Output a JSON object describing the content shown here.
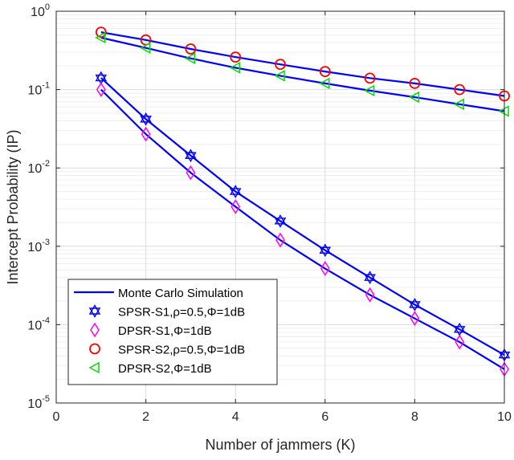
{
  "chart_data": {
    "type": "line",
    "xlabel": "Number of jammers (K)",
    "ylabel": "Intercept Probability (IP)",
    "xlim": [
      0,
      10
    ],
    "ylim": [
      1e-05,
      1
    ],
    "yscale": "log",
    "grid": true,
    "legend_position": "bottom-left",
    "xticks": [
      "0",
      "2",
      "4",
      "6",
      "8",
      "10"
    ],
    "yticks": [
      {
        "base": "10",
        "exp": "0"
      },
      {
        "base": "10",
        "exp": "-1"
      },
      {
        "base": "10",
        "exp": "-2"
      },
      {
        "base": "10",
        "exp": "-3"
      },
      {
        "base": "10",
        "exp": "-4"
      },
      {
        "base": "10",
        "exp": "-5"
      }
    ],
    "x": [
      1,
      2,
      3,
      4,
      5,
      6,
      7,
      8,
      9,
      10
    ],
    "line_legend": "Monte Carlo Simulation",
    "line_color": "#0000ff",
    "series": [
      {
        "name": "SPSR-S1,ρ=0.5,Φ=1dB",
        "marker": "hexagram",
        "color": "#0000ff",
        "values": [
          0.141,
          0.042,
          0.0144,
          0.005,
          0.0021,
          0.00089,
          0.0004,
          0.00018,
          8.7e-05,
          4.1e-05
        ]
      },
      {
        "name": "DPSR-S1,Φ=1dB",
        "marker": "diamond",
        "color": "#ff00ff",
        "values": [
          0.1,
          0.027,
          0.0087,
          0.0032,
          0.0012,
          0.00052,
          0.00024,
          0.00012,
          6e-05,
          2.7e-05
        ]
      },
      {
        "name": "SPSR-S2,ρ=0.5,Φ=1dB",
        "marker": "circle",
        "color": "#ff0000",
        "values": [
          0.54,
          0.43,
          0.33,
          0.26,
          0.21,
          0.17,
          0.14,
          0.12,
          0.1,
          0.083
        ]
      },
      {
        "name": "DPSR-S2,Φ=1dB",
        "marker": "triangle-left",
        "color": "#00dd00",
        "values": [
          0.46,
          0.34,
          0.25,
          0.19,
          0.15,
          0.12,
          0.097,
          0.08,
          0.065,
          0.053
        ]
      }
    ]
  }
}
